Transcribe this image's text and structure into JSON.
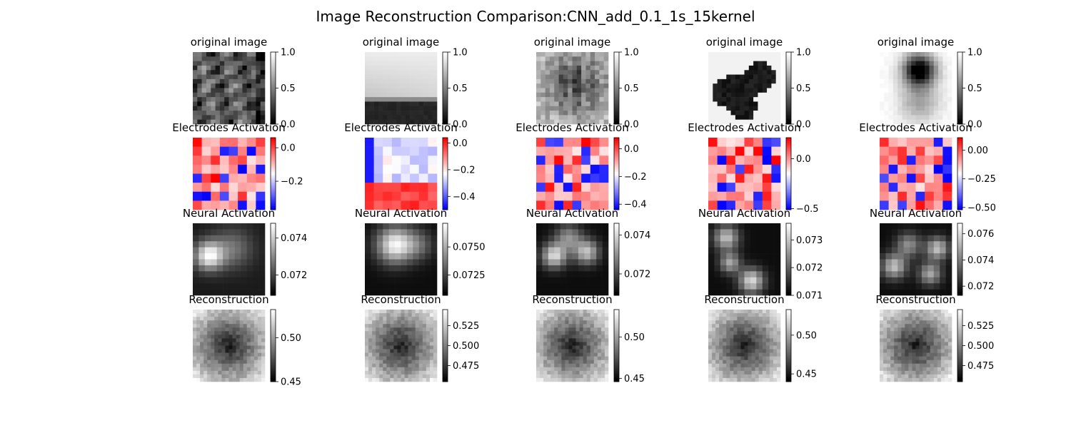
{
  "chart_data": {
    "type": "heatmap",
    "title": "Image Reconstruction Comparison:CNN_add_0.1_1s_15kernel",
    "columns": 5,
    "rows": [
      {
        "key": "original",
        "title": "original image",
        "colormap": "gray",
        "grid": [
          16,
          16
        ],
        "panels": [
          {
            "vmin": 0,
            "vmax": 1.0,
            "ticks": [
              {
                "v": 0.0,
                "label": "0.0"
              },
              {
                "v": 0.5,
                "label": "0.5"
              },
              {
                "v": 1.0,
                "label": "1.0"
              }
            ],
            "content": "textured foliage"
          },
          {
            "vmin": 0,
            "vmax": 1.0,
            "ticks": [
              {
                "v": 0.0,
                "label": "0.0"
              },
              {
                "v": 0.5,
                "label": "0.5"
              },
              {
                "v": 1.0,
                "label": "1.0"
              }
            ],
            "content": "sky over dark horizon"
          },
          {
            "vmin": 0,
            "vmax": 1.0,
            "ticks": [
              {
                "v": 0.0,
                "label": "0.0"
              },
              {
                "v": 0.5,
                "label": "0.5"
              },
              {
                "v": 1.0,
                "label": "1.0"
              }
            ],
            "content": "lion"
          },
          {
            "vmin": 0,
            "vmax": 1.0,
            "ticks": [
              {
                "v": 0.0,
                "label": "0.0"
              },
              {
                "v": 0.5,
                "label": "0.5"
              },
              {
                "v": 1.0,
                "label": "1.0"
              }
            ],
            "content": "black animals on white"
          },
          {
            "vmin": 0,
            "vmax": 1.0,
            "ticks": [
              {
                "v": 0.0,
                "label": "0.0"
              },
              {
                "v": 0.5,
                "label": "0.5"
              },
              {
                "v": 1.0,
                "label": "1.0"
              }
            ],
            "content": "dark flower in hand"
          }
        ]
      },
      {
        "key": "electrodes",
        "title": "Electrodes Activation",
        "colormap": "bwr",
        "grid": [
          8,
          8
        ],
        "panels": [
          {
            "vmin": -0.37,
            "vmax": 0.06,
            "ticks": [
              {
                "v": -0.2,
                "label": "−0.2"
              },
              {
                "v": 0.0,
                "label": "0.0"
              }
            ]
          },
          {
            "vmin": -0.5,
            "vmax": 0.04,
            "ticks": [
              {
                "v": -0.4,
                "label": "−0.4"
              },
              {
                "v": -0.2,
                "label": "−0.2"
              },
              {
                "v": 0.0,
                "label": "0.0"
              }
            ]
          },
          {
            "vmin": -0.44,
            "vmax": 0.08,
            "ticks": [
              {
                "v": -0.4,
                "label": "−0.4"
              },
              {
                "v": -0.2,
                "label": "−0.2"
              },
              {
                "v": 0.0,
                "label": "0.0"
              }
            ]
          },
          {
            "vmin": -0.51,
            "vmax": 0.21,
            "ticks": [
              {
                "v": -0.5,
                "label": "−0.5"
              },
              {
                "v": 0.0,
                "label": "0.0"
              }
            ]
          },
          {
            "vmin": -0.52,
            "vmax": 0.11,
            "ticks": [
              {
                "v": -0.5,
                "label": "−0.50"
              },
              {
                "v": -0.25,
                "label": "−0.25"
              },
              {
                "v": 0.0,
                "label": "0.00"
              }
            ]
          }
        ]
      },
      {
        "key": "neural",
        "title": "Neural Activation",
        "colormap": "gray",
        "grid": [
          12,
          12
        ],
        "panels": [
          {
            "vmin": 0.0709,
            "vmax": 0.0748,
            "ticks": [
              {
                "v": 0.072,
                "label": "0.072"
              },
              {
                "v": 0.074,
                "label": "0.074"
              }
            ],
            "content": "bright blob left"
          },
          {
            "vmin": 0.0707,
            "vmax": 0.0771,
            "ticks": [
              {
                "v": 0.0725,
                "label": "0.0725"
              },
              {
                "v": 0.075,
                "label": "0.0750"
              }
            ],
            "content": "bright band top"
          },
          {
            "vmin": 0.0709,
            "vmax": 0.0746,
            "ticks": [
              {
                "v": 0.072,
                "label": "0.072"
              },
              {
                "v": 0.074,
                "label": "0.074"
              }
            ],
            "content": "arch"
          },
          {
            "vmin": 0.071,
            "vmax": 0.0736,
            "ticks": [
              {
                "v": 0.071,
                "label": "0.071"
              },
              {
                "v": 0.072,
                "label": "0.072"
              },
              {
                "v": 0.073,
                "label": "0.073"
              }
            ],
            "content": "diagonal blobs"
          },
          {
            "vmin": 0.0713,
            "vmax": 0.0768,
            "ticks": [
              {
                "v": 0.072,
                "label": "0.072"
              },
              {
                "v": 0.074,
                "label": "0.074"
              },
              {
                "v": 0.076,
                "label": "0.076"
              }
            ],
            "content": "ring of blobs"
          }
        ]
      },
      {
        "key": "reconstruction",
        "title": "Reconstruction",
        "colormap": "gray",
        "grid": [
          20,
          20
        ],
        "panels": [
          {
            "vmin": 0.45,
            "vmax": 0.532,
            "ticks": [
              {
                "v": 0.45,
                "label": "0.45"
              },
              {
                "v": 0.5,
                "label": "0.50"
              }
            ]
          },
          {
            "vmin": 0.455,
            "vmax": 0.545,
            "ticks": [
              {
                "v": 0.475,
                "label": "0.475"
              },
              {
                "v": 0.5,
                "label": "0.500"
              },
              {
                "v": 0.525,
                "label": "0.525"
              }
            ]
          },
          {
            "vmin": 0.446,
            "vmax": 0.533,
            "ticks": [
              {
                "v": 0.45,
                "label": "0.45"
              },
              {
                "v": 0.5,
                "label": "0.50"
              }
            ]
          },
          {
            "vmin": 0.44,
            "vmax": 0.533,
            "ticks": [
              {
                "v": 0.45,
                "label": "0.45"
              },
              {
                "v": 0.5,
                "label": "0.50"
              }
            ]
          },
          {
            "vmin": 0.455,
            "vmax": 0.545,
            "ticks": [
              {
                "v": 0.475,
                "label": "0.475"
              },
              {
                "v": 0.5,
                "label": "0.500"
              },
              {
                "v": 0.525,
                "label": "0.525"
              }
            ]
          }
        ]
      }
    ]
  }
}
